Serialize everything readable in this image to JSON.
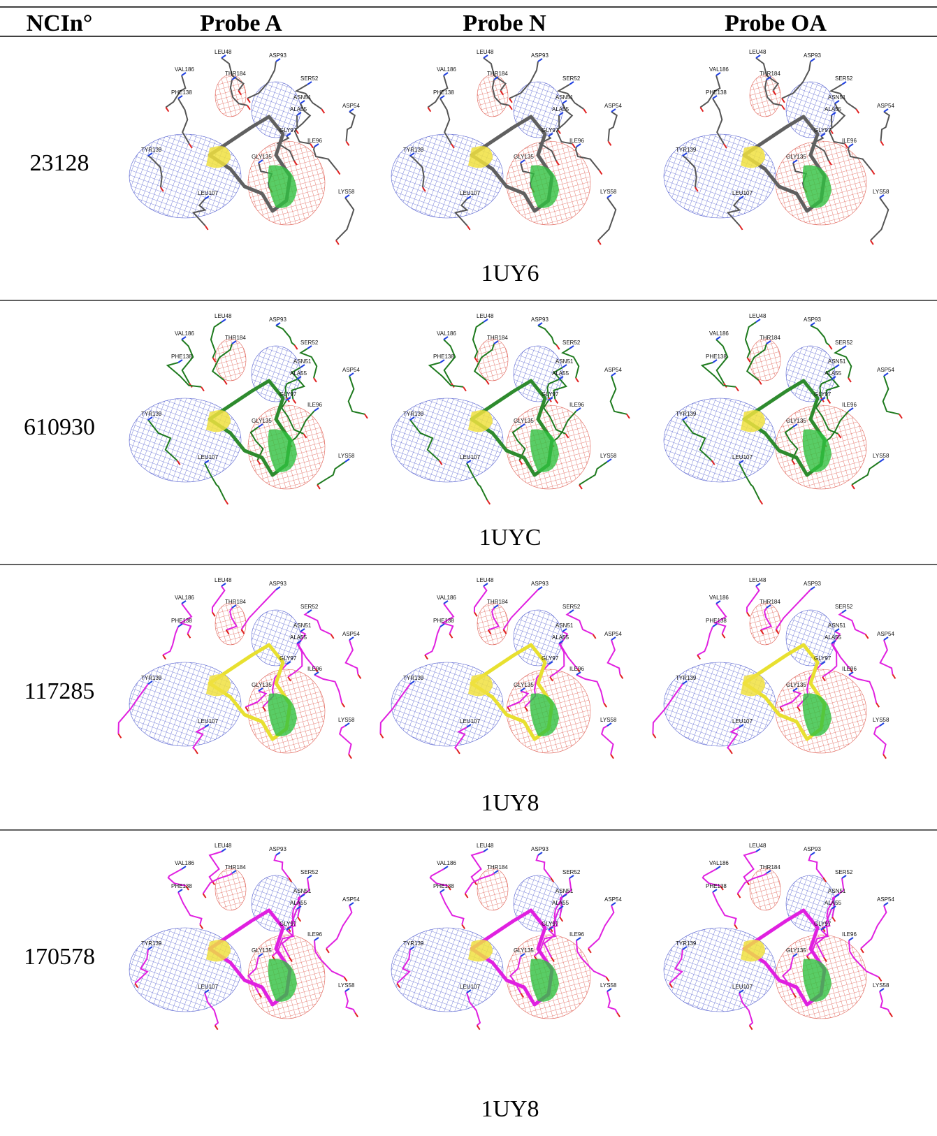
{
  "table": {
    "header": [
      "NCIn°",
      "Probe A",
      "Probe N",
      "Probe OA"
    ],
    "rows": [
      {
        "id": "23128",
        "pdb": "1UY6",
        "residue_color": "#555555",
        "ligand_color": "#606060"
      },
      {
        "id": "610930",
        "pdb": "1UYC",
        "residue_color": "#1e7a1e",
        "ligand_color": "#2e8b2e"
      },
      {
        "id": "117285",
        "pdb": "1UY8",
        "residue_color": "#e020e0",
        "ligand_color": "#e8e030"
      },
      {
        "id": "170578",
        "pdb": "1UY8",
        "residue_color": "#e020e0",
        "ligand_color": "#e020e0"
      }
    ],
    "residue_labels": [
      "VAL186",
      "LEU48",
      "ASP93",
      "THR184",
      "SER52",
      "PHE138",
      "ASN51",
      "ALA55",
      "ASP54",
      "GLY97",
      "ILE96",
      "TYR139",
      "GLY135",
      "LEU107",
      "LYS58"
    ]
  }
}
